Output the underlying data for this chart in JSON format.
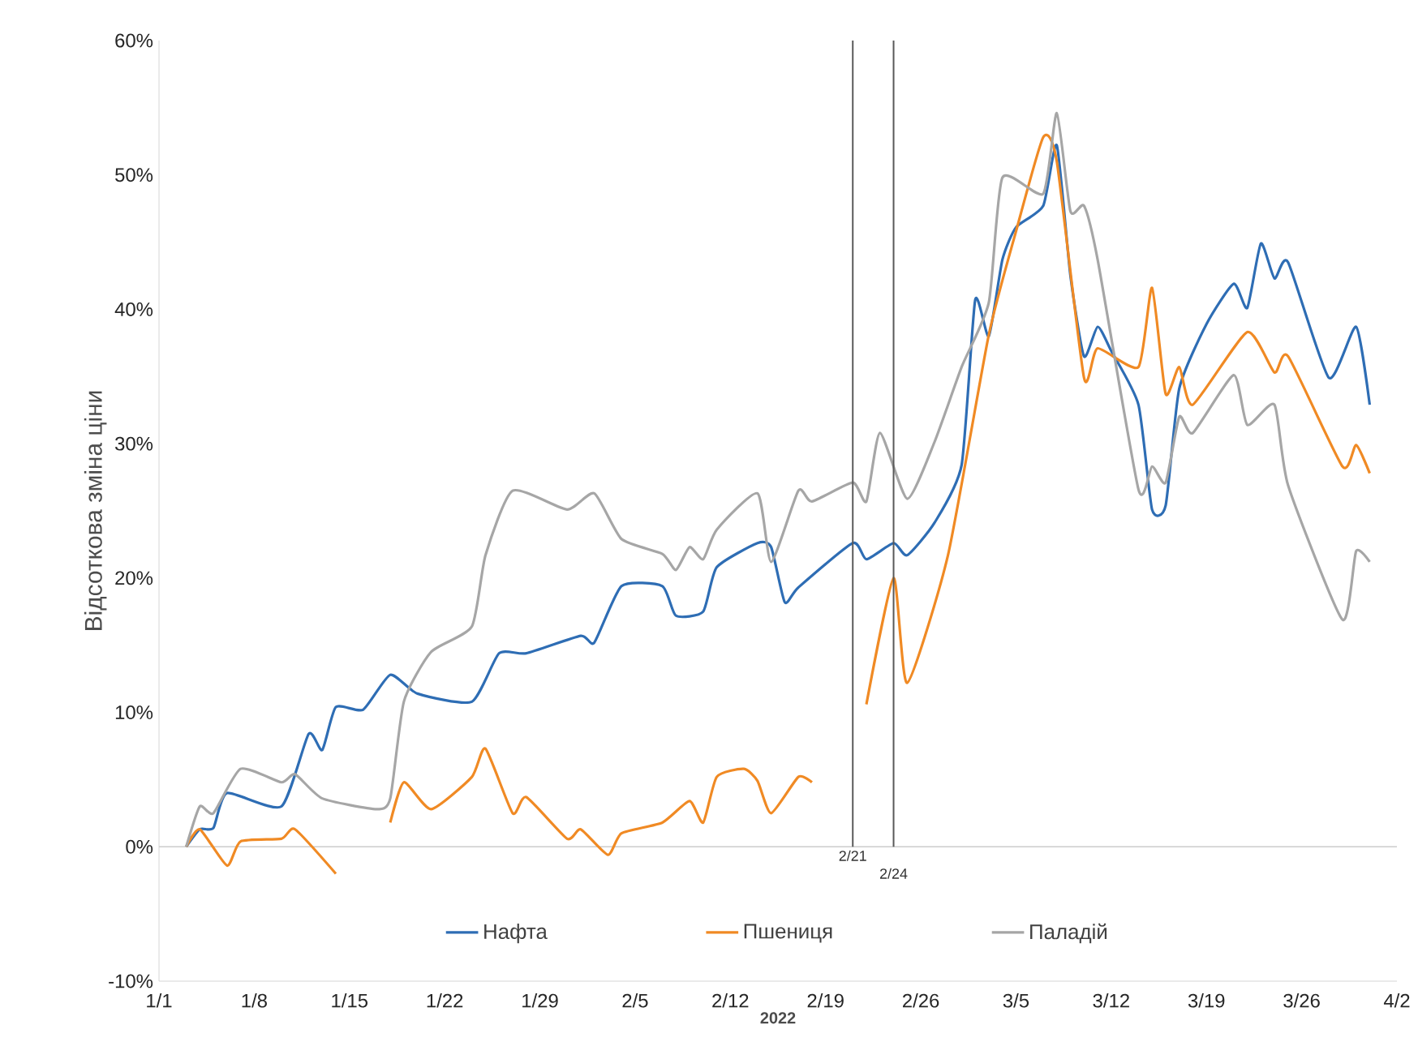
{
  "chart_data": {
    "type": "line",
    "xlabel": "2022",
    "ylabel": "Відсоткова зміна ціни",
    "xlim": [
      "2022-01-01",
      "2022-04-02"
    ],
    "xticks": [
      {
        "value": "2022-01-01",
        "label": "1/1"
      },
      {
        "value": "2022-01-08",
        "label": "1/8"
      },
      {
        "value": "2022-01-15",
        "label": "1/15"
      },
      {
        "value": "2022-01-22",
        "label": "1/22"
      },
      {
        "value": "2022-01-29",
        "label": "1/29"
      },
      {
        "value": "2022-02-05",
        "label": "2/5"
      },
      {
        "value": "2022-02-12",
        "label": "2/12"
      },
      {
        "value": "2022-02-19",
        "label": "2/19"
      },
      {
        "value": "2022-02-26",
        "label": "2/26"
      },
      {
        "value": "2022-03-05",
        "label": "3/5"
      },
      {
        "value": "2022-03-12",
        "label": "3/12"
      },
      {
        "value": "2022-03-19",
        "label": "3/19"
      },
      {
        "value": "2022-03-26",
        "label": "3/26"
      },
      {
        "value": "2022-04-02",
        "label": "4/2"
      }
    ],
    "ylim": [
      -10,
      60
    ],
    "yticks": [
      {
        "value": -10,
        "label": "-10%"
      },
      {
        "value": 0,
        "label": "0%"
      },
      {
        "value": 10,
        "label": "10%"
      },
      {
        "value": 20,
        "label": "20%"
      },
      {
        "value": 30,
        "label": "30%"
      },
      {
        "value": 40,
        "label": "40%"
      },
      {
        "value": 50,
        "label": "50%"
      },
      {
        "value": 60,
        "label": "60%"
      }
    ],
    "legend": "bottom",
    "marker": "none",
    "line_style": "solid",
    "ref_lines": [
      {
        "axis": "x",
        "value": "2022-02-21",
        "label": "2/21",
        "color": "#595959"
      },
      {
        "axis": "x",
        "value": "2022-02-24",
        "label": "2/24",
        "color": "#595959"
      }
    ],
    "series": [
      {
        "name": "Нафта",
        "color": "#2e6db4",
        "x": [
          "2022-01-03",
          "2022-01-04",
          "2022-01-05",
          "2022-01-06",
          "2022-01-10",
          "2022-01-12",
          "2022-01-13",
          "2022-01-14",
          "2022-01-16",
          "2022-01-18",
          "2022-01-20",
          "2022-01-24",
          "2022-01-26",
          "2022-01-28",
          "2022-02-01",
          "2022-02-02",
          "2022-02-04",
          "2022-02-07",
          "2022-02-08",
          "2022-02-10",
          "2022-02-11",
          "2022-02-14",
          "2022-02-15",
          "2022-02-16",
          "2022-02-17",
          "2022-02-21",
          "2022-02-22",
          "2022-02-24",
          "2022-02-25",
          "2022-02-27",
          "2022-03-01",
          "2022-03-02",
          "2022-03-03",
          "2022-03-04",
          "2022-03-05",
          "2022-03-07",
          "2022-03-08",
          "2022-03-09",
          "2022-03-10",
          "2022-03-11",
          "2022-03-12",
          "2022-03-14",
          "2022-03-15",
          "2022-03-16",
          "2022-03-17",
          "2022-03-19",
          "2022-03-21",
          "2022-03-22",
          "2022-03-23",
          "2022-03-24",
          "2022-03-25",
          "2022-03-28",
          "2022-03-30",
          "2022-03-31"
        ],
        "values": [
          0,
          1.3,
          1.4,
          4,
          3,
          8.4,
          7.2,
          10.4,
          10.2,
          12.8,
          11.4,
          10.8,
          14.4,
          14.4,
          15.7,
          15.2,
          19.4,
          19.4,
          17.2,
          17.5,
          20.8,
          22.6,
          22.3,
          18.2,
          19.3,
          22.6,
          21.4,
          22.6,
          21.7,
          24.1,
          28.4,
          40.7,
          38,
          43.7,
          46.1,
          47.7,
          52.2,
          42.5,
          36.5,
          38.7,
          36.9,
          32.9,
          25.1,
          25.4,
          34.1,
          38.9,
          41.9,
          40.1,
          44.9,
          42.3,
          43.5,
          34.9,
          38.7,
          32.9
        ]
      },
      {
        "name": "Пшениця",
        "color": "#f08a24",
        "x": [
          "2022-01-03",
          "2022-01-04",
          "2022-01-06",
          "2022-01-07",
          "2022-01-10",
          "2022-01-11",
          "2022-01-14",
          "2022-01-16",
          "2022-01-18",
          "2022-01-19",
          "2022-01-21",
          "2022-01-24",
          "2022-01-25",
          "2022-01-27",
          "2022-01-28",
          "2022-01-31",
          "2022-02-01",
          "2022-02-03",
          "2022-02-04",
          "2022-02-07",
          "2022-02-09",
          "2022-02-10",
          "2022-02-11",
          "2022-02-13",
          "2022-02-14",
          "2022-02-15",
          "2022-02-17",
          "2022-02-18",
          "2022-02-20",
          "2022-02-22",
          "2022-02-24",
          "2022-02-25",
          "2022-02-28",
          "2022-03-03",
          "2022-03-05",
          "2022-03-07",
          "2022-03-08",
          "2022-03-10",
          "2022-03-11",
          "2022-03-14",
          "2022-03-15",
          "2022-03-16",
          "2022-03-17",
          "2022-03-18",
          "2022-03-22",
          "2022-03-24",
          "2022-03-25",
          "2022-03-29",
          "2022-03-30",
          "2022-03-31"
        ],
        "values": [
          0,
          1.3,
          -1.4,
          0.4,
          0.6,
          1.3,
          -2,
          null,
          1.8,
          4.8,
          2.8,
          5.2,
          7.3,
          2.5,
          3.7,
          0.6,
          1.3,
          -0.6,
          1,
          1.8,
          3.4,
          1.8,
          5.2,
          5.8,
          4.9,
          2.5,
          5.2,
          4.8,
          null,
          10.6,
          20,
          12.2,
          21.7,
          38.1,
          45.8,
          52.8,
          51,
          34.9,
          37.1,
          35.7,
          41.6,
          33.7,
          35.7,
          32.9,
          38.3,
          35.3,
          36.5,
          28.3,
          29.9,
          27.8
        ]
      },
      {
        "name": "Паладій",
        "color": "#a6a6a6",
        "x": [
          "2022-01-03",
          "2022-01-04",
          "2022-01-05",
          "2022-01-07",
          "2022-01-10",
          "2022-01-11",
          "2022-01-13",
          "2022-01-17",
          "2022-01-18",
          "2022-01-19",
          "2022-01-21",
          "2022-01-24",
          "2022-01-25",
          "2022-01-27",
          "2022-01-31",
          "2022-02-02",
          "2022-02-04",
          "2022-02-07",
          "2022-02-08",
          "2022-02-09",
          "2022-02-10",
          "2022-02-11",
          "2022-02-14",
          "2022-02-15",
          "2022-02-17",
          "2022-02-18",
          "2022-02-21",
          "2022-02-22",
          "2022-02-23",
          "2022-02-25",
          "2022-02-27",
          "2022-03-01",
          "2022-03-03",
          "2022-03-04",
          "2022-03-07",
          "2022-03-08",
          "2022-03-09",
          "2022-03-10",
          "2022-03-11",
          "2022-03-14",
          "2022-03-15",
          "2022-03-16",
          "2022-03-17",
          "2022-03-18",
          "2022-03-21",
          "2022-03-22",
          "2022-03-24",
          "2022-03-25",
          "2022-03-29",
          "2022-03-30",
          "2022-03-31"
        ],
        "values": [
          0,
          3,
          2.5,
          5.8,
          4.8,
          5.4,
          3.6,
          2.8,
          3.6,
          10.8,
          14.5,
          16.4,
          21.7,
          26.5,
          25.1,
          26.3,
          22.9,
          21.8,
          20.6,
          22.3,
          21.4,
          23.6,
          26.3,
          21.2,
          26.5,
          25.7,
          27.1,
          25.7,
          30.8,
          25.9,
          30.1,
          35.7,
          40.5,
          49.8,
          48.6,
          54.6,
          47.3,
          47.7,
          43.7,
          26.6,
          28.3,
          27.1,
          32,
          30.8,
          35.1,
          31.4,
          32.9,
          26.9,
          16.9,
          22,
          21.2
        ]
      }
    ]
  }
}
